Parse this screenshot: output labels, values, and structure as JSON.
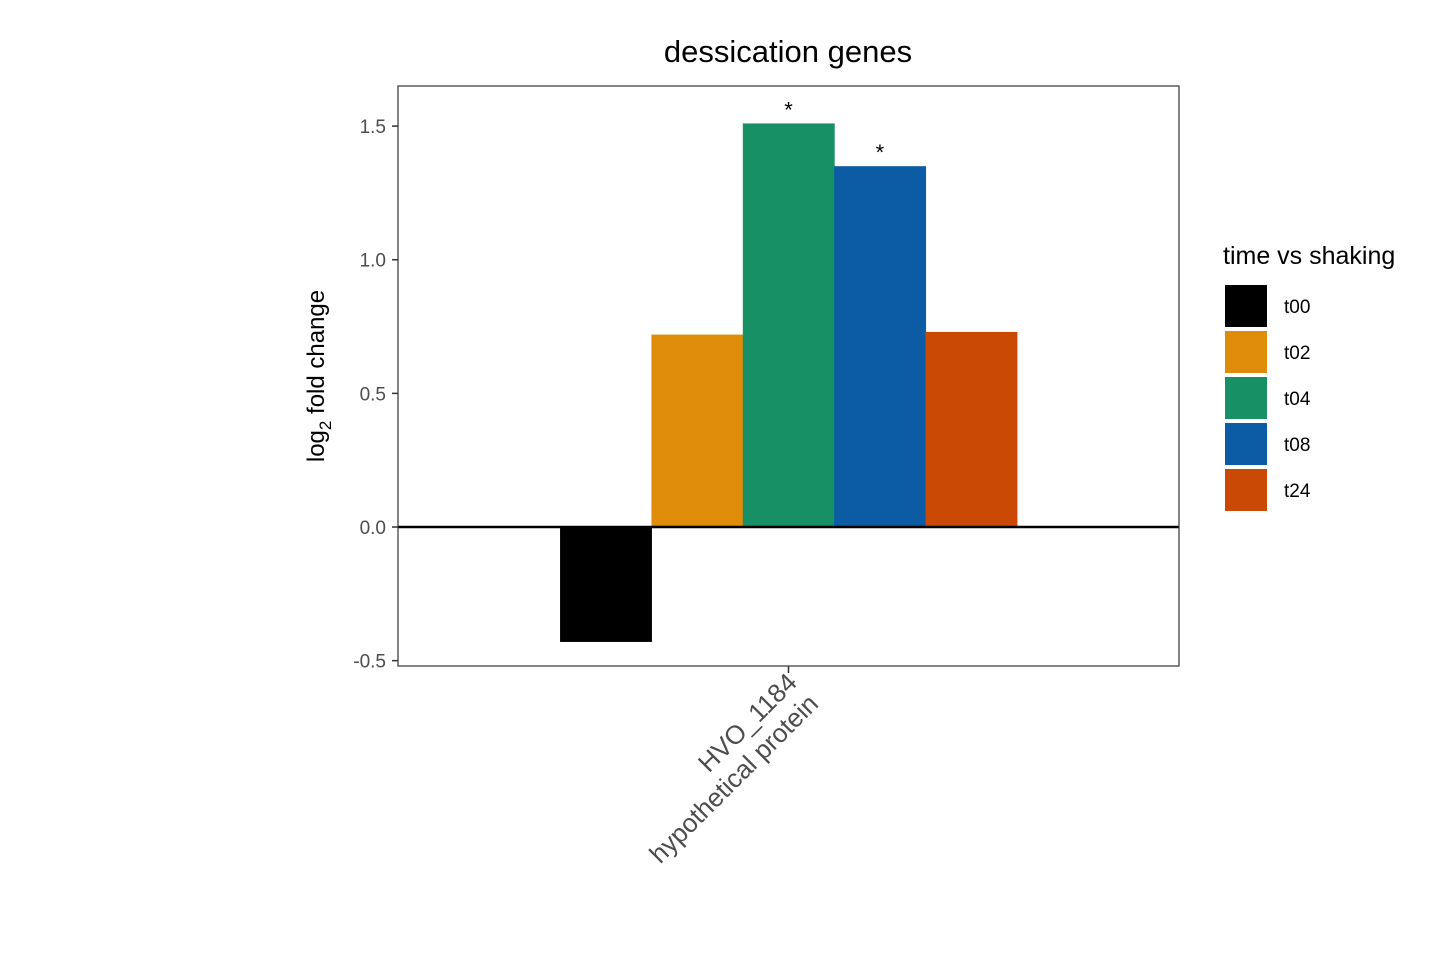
{
  "chart_data": {
    "type": "bar",
    "title": "dessication genes",
    "ylabel": {
      "main": "log",
      "sub": "2",
      "rest": " fold change"
    },
    "xlabel": "",
    "categories": [
      {
        "line1": "HVO_1184",
        "line2": "hypothetical protein"
      }
    ],
    "ylim": [
      -0.52,
      1.65
    ],
    "yticks": [
      {
        "value": -0.5,
        "label": "-0.5"
      },
      {
        "value": 0.0,
        "label": "0.0"
      },
      {
        "value": 0.5,
        "label": "0.5"
      },
      {
        "value": 1.0,
        "label": "1.0"
      },
      {
        "value": 1.5,
        "label": "1.5"
      }
    ],
    "grid": false,
    "reference_line": 0,
    "legend": {
      "title": "time vs shaking",
      "position": "right"
    },
    "series": [
      {
        "name": "t00",
        "color": "#000000",
        "values": [
          -0.43
        ],
        "annotation": ""
      },
      {
        "name": "t02",
        "color": "#DE8C0A",
        "values": [
          0.72
        ],
        "annotation": ""
      },
      {
        "name": "t04",
        "color": "#169064",
        "values": [
          1.51
        ],
        "annotation": "*"
      },
      {
        "name": "t08",
        "color": "#0B5CA4",
        "values": [
          1.35
        ],
        "annotation": "*"
      },
      {
        "name": "t24",
        "color": "#CA4A05",
        "values": [
          0.73
        ],
        "annotation": ""
      }
    ]
  }
}
